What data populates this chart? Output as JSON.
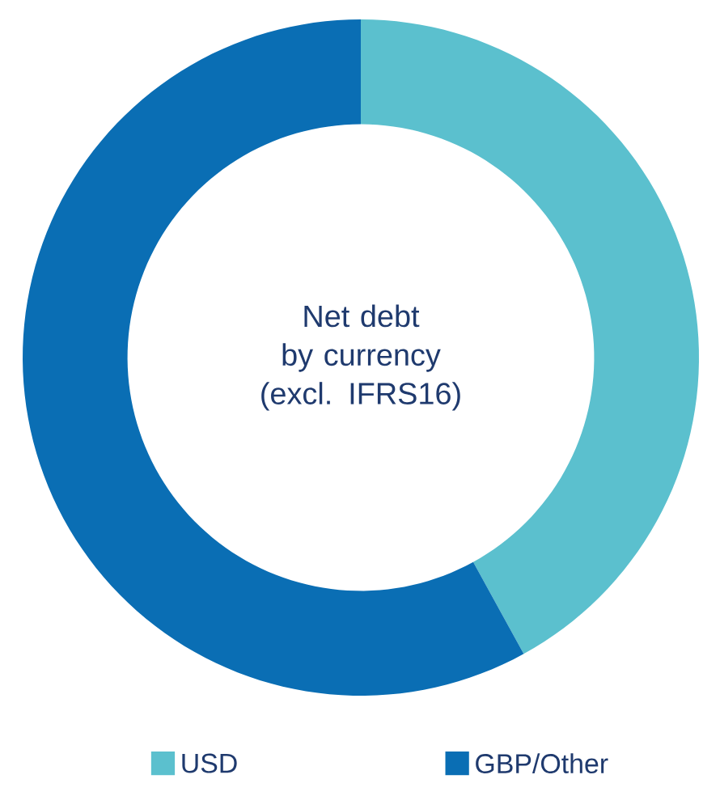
{
  "chart_data": {
    "type": "donut",
    "title": "Net debt by currency (excl. IFRS16)",
    "categories": [
      "USD",
      "GBP/Other"
    ],
    "values": [
      42,
      58
    ],
    "colors": [
      "#5bc0ce",
      "#0a6eb4"
    ],
    "legend": "bottom"
  }
}
